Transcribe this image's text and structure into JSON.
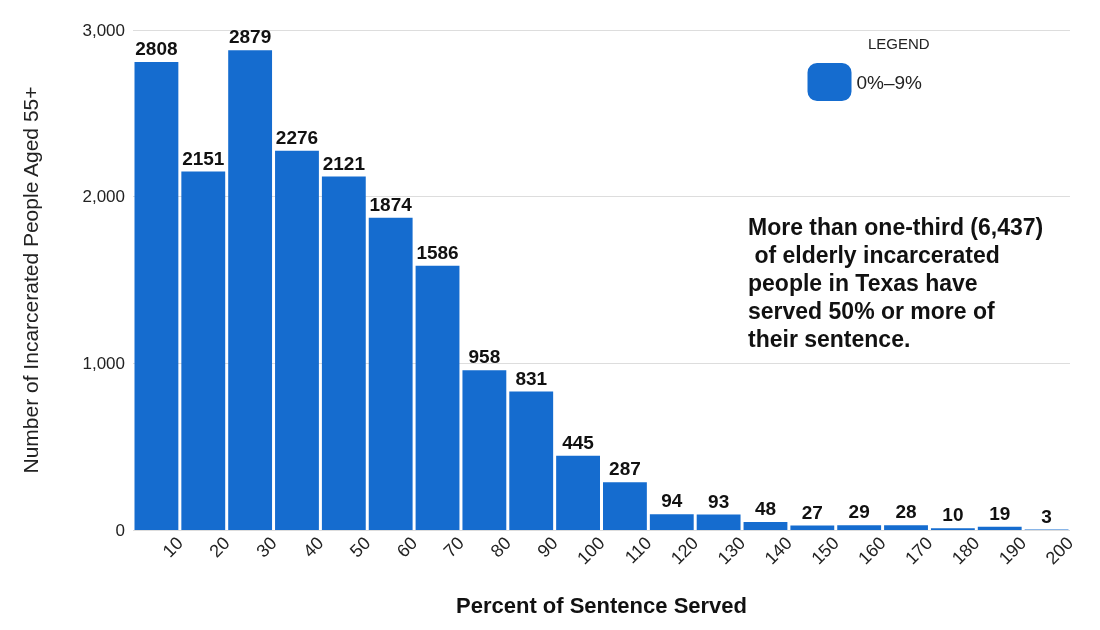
{
  "chart_data": {
    "type": "histogram",
    "xlabel": "Percent of Sentence Served",
    "ylabel": "Number of Incarcerated People Aged 55+",
    "bins": [
      0,
      10,
      20,
      30,
      40,
      50,
      60,
      70,
      80,
      90,
      100,
      110,
      120,
      130,
      140,
      150,
      160,
      170,
      180,
      190,
      200
    ],
    "series": [
      {
        "name": "0%–9%",
        "color": "#156ccf",
        "values": [
          2808,
          2151,
          2879,
          2276,
          2121,
          1874,
          1586,
          958,
          831,
          445,
          287,
          94,
          93,
          48,
          27,
          29,
          28,
          10,
          19,
          3
        ]
      }
    ],
    "xlim": [
      0,
      200
    ],
    "xticks": [
      10,
      20,
      30,
      40,
      50,
      60,
      70,
      80,
      90,
      100,
      110,
      120,
      130,
      140,
      150,
      160,
      170,
      180,
      190,
      200
    ],
    "ylim": [
      0,
      3000
    ],
    "yticks": [
      0,
      {
        "value": 1000,
        "label": "1,000"
      },
      {
        "value": 2000,
        "label": "2,000"
      },
      {
        "value": 3000,
        "label": "3,000"
      }
    ],
    "grid": "y",
    "data_labels": true,
    "legend": "top right",
    "legend_title": "LEGEND",
    "annotations": [
      "More than one-third (6,437) of elderly incarcerated people in Texas have served 50% or more of their sentence."
    ]
  }
}
